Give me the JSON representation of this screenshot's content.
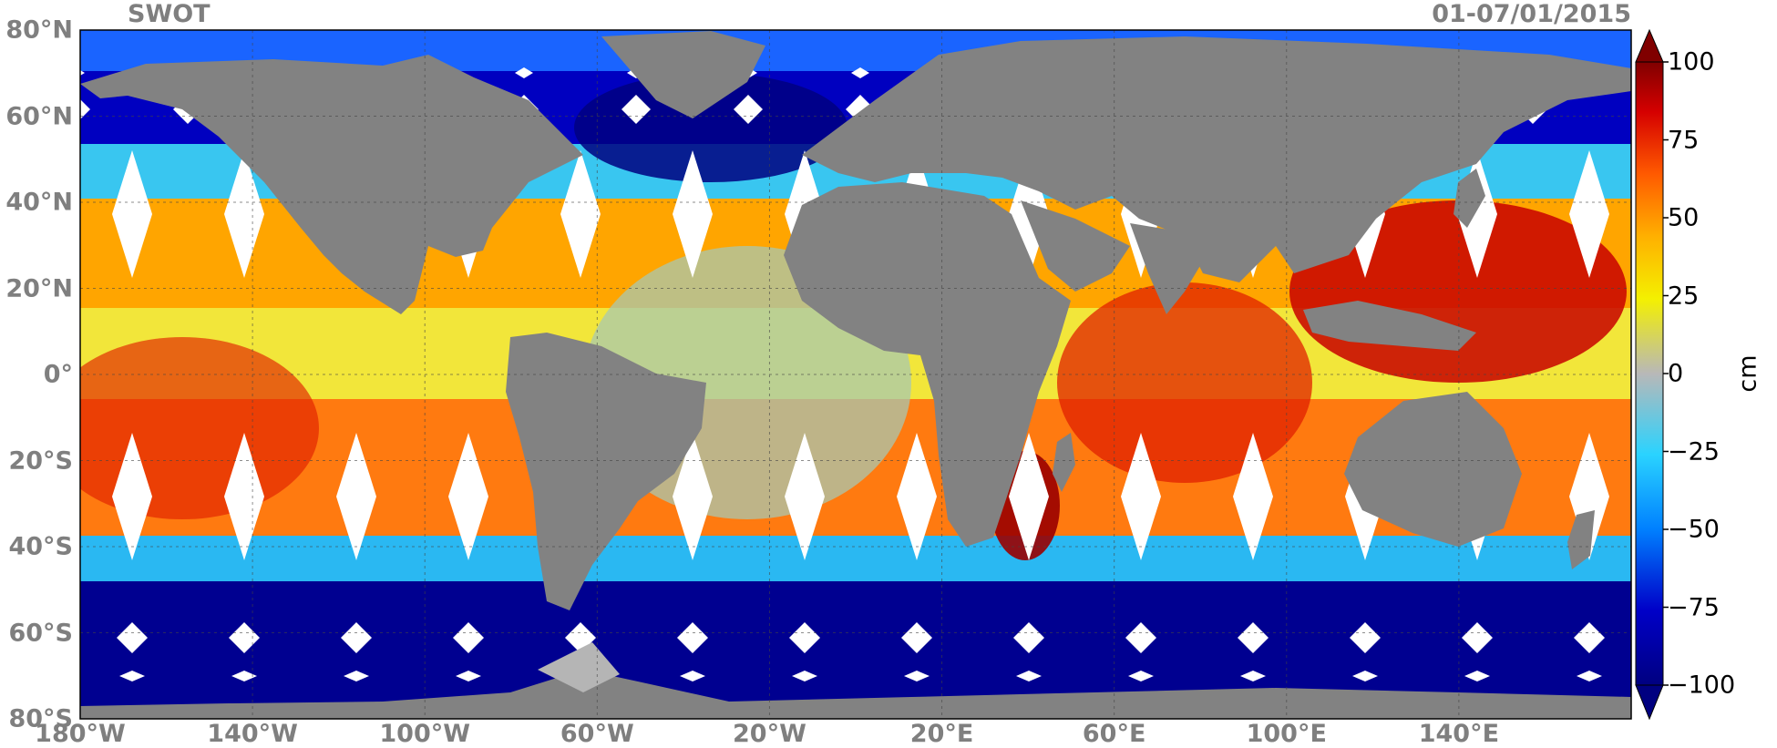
{
  "title_left": "SWOT",
  "title_right": "01-07/01/2015",
  "lat_labels": [
    "80°N",
    "60°N",
    "40°N",
    "20°N",
    "0°",
    "20°S",
    "40°S",
    "60°S",
    "80°S"
  ],
  "lon_labels": [
    "180°W",
    "140°W",
    "100°W",
    "60°W",
    "20°W",
    "20°E",
    "60°E",
    "100°E",
    "140°E"
  ],
  "colorbar": {
    "unit": "cm",
    "ticks": [
      "100",
      "75",
      "50",
      "25",
      "0",
      "−25",
      "−50",
      "−75",
      "−100"
    ],
    "colors": [
      "#800000",
      "#d50000",
      "#ff5a00",
      "#ffb000",
      "#f4f000",
      "#b8b8b8",
      "#2ad3ff",
      "#0080ff",
      "#0000c8",
      "#000080"
    ]
  },
  "map_colors": {
    "land": "#828282",
    "ice": "#b5b5b5",
    "gap": "#ffffff"
  },
  "chart_data": {
    "type": "heatmap",
    "title": "SWOT",
    "date_range": "01-07/01/2015",
    "variable_unit": "cm",
    "color_range": [
      -100,
      100
    ],
    "lon_range": [
      -180,
      180
    ],
    "lat_range": [
      -80,
      80
    ],
    "grid": true
  }
}
